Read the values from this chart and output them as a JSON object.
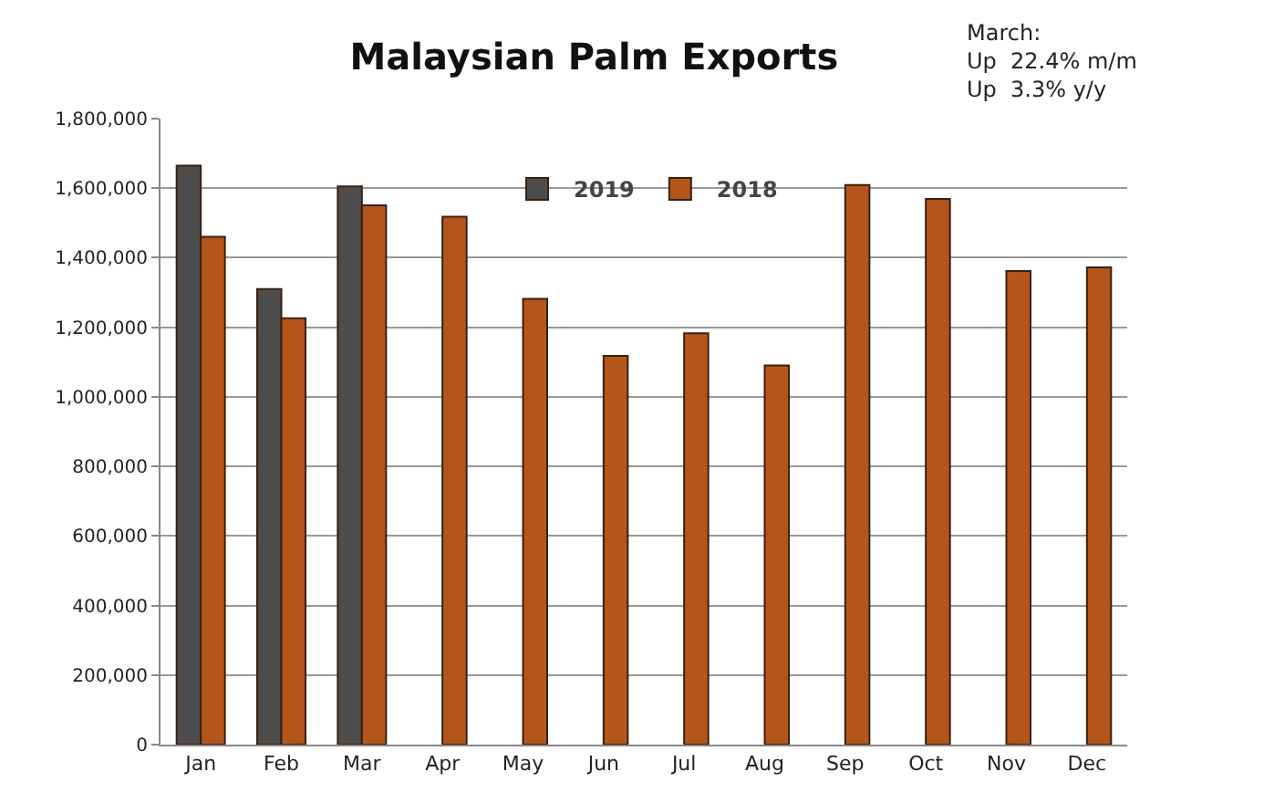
{
  "chart_data": {
    "type": "bar",
    "title": "Malaysian Palm Exports",
    "annotations": [
      "March:\nUp  22.4% m/m\nUp  3.3% y/y"
    ],
    "categories": [
      "Jan",
      "Feb",
      "Mar",
      "Apr",
      "May",
      "Jun",
      "Jul",
      "Aug",
      "Sep",
      "Oct",
      "Nov",
      "Dec"
    ],
    "series": [
      {
        "name": "2019",
        "color": "#4d4d4d",
        "values": [
          1665000,
          1310000,
          1605000,
          null,
          null,
          null,
          null,
          null,
          null,
          null,
          null,
          null
        ]
      },
      {
        "name": "2018",
        "color": "#b4561c",
        "values": [
          1460000,
          1226000,
          1551000,
          1518000,
          1282000,
          1118000,
          1183000,
          1090000,
          1609000,
          1569000,
          1362000,
          1372000
        ]
      }
    ],
    "ylim": [
      0,
      1800000
    ],
    "yticks": [
      {
        "value": 0,
        "label": "0"
      },
      {
        "value": 200000,
        "label": "200,000"
      },
      {
        "value": 400000,
        "label": "400,000"
      },
      {
        "value": 600000,
        "label": "600,000"
      },
      {
        "value": 800000,
        "label": "800,000"
      },
      {
        "value": 1000000,
        "label": "1,000,000"
      },
      {
        "value": 1200000,
        "label": "1,200,000"
      },
      {
        "value": 1400000,
        "label": "1,400,000"
      },
      {
        "value": 1600000,
        "label": "1,600,000"
      },
      {
        "value": 1800000,
        "label": "1,800,000"
      }
    ],
    "grid": "y",
    "legend": "top"
  }
}
